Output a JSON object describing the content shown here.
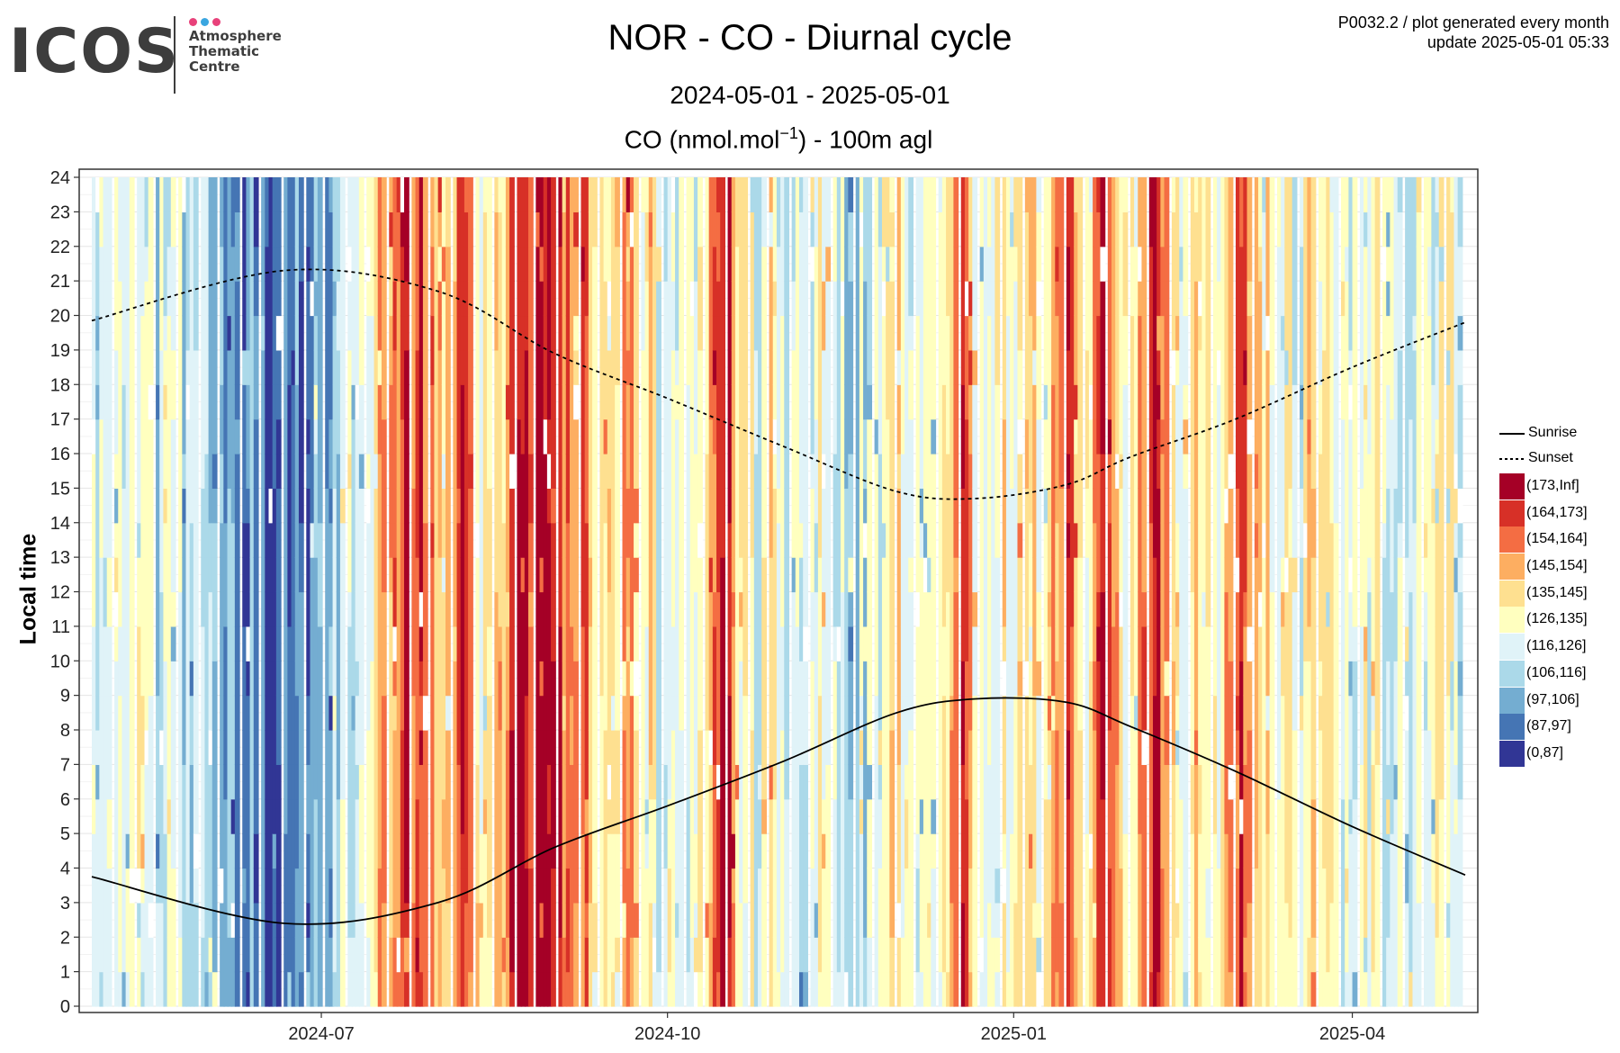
{
  "logo": {
    "word": "ICOS",
    "text": "Atmosphere\nThematic\nCentre",
    "dot_colors": [
      "#e8417a",
      "#3aa6e0",
      "#e8417a"
    ]
  },
  "header": {
    "title": "NOR - CO - Diurnal cycle",
    "subtitle": "2024-05-01 - 2025-05-01",
    "units_prefix": "CO (nmol.mol",
    "units_sup": "−1",
    "units_suffix": ") - 100m agl",
    "meta_line1": "P0032.2 / plot generated every month",
    "meta_line2": "update  2025-05-01 05:33"
  },
  "chart_data": {
    "type": "heatmap",
    "title": "NOR - CO - Diurnal cycle",
    "subtitle": "2024-05-01 - 2025-05-01",
    "value_label": "CO (nmol.mol-1) - 100m agl",
    "xlabel": "",
    "ylabel": "Local time",
    "x_range": [
      "2024-05-01",
      "2025-05-01"
    ],
    "x_ticks": [
      "2024-07",
      "2024-10",
      "2025-01",
      "2025-04"
    ],
    "y_range": [
      0,
      24
    ],
    "y_ticks": [
      0,
      1,
      2,
      3,
      4,
      5,
      6,
      7,
      8,
      9,
      10,
      11,
      12,
      13,
      14,
      15,
      16,
      17,
      18,
      19,
      20,
      21,
      22,
      23,
      24
    ],
    "grid": true,
    "legend_position": "right",
    "bins": [
      {
        "label": "(173,Inf]",
        "color": "#a50026"
      },
      {
        "label": "(164,173]",
        "color": "#d73027"
      },
      {
        "label": "(154,164]",
        "color": "#f46d43"
      },
      {
        "label": "(145,154]",
        "color": "#fdae61"
      },
      {
        "label": "(135,145]",
        "color": "#fee090"
      },
      {
        "label": "(126,135]",
        "color": "#ffffbf"
      },
      {
        "label": "(116,126]",
        "color": "#e0f3f8"
      },
      {
        "label": "(106,116]",
        "color": "#abd9e9"
      },
      {
        "label": "(97,106]",
        "color": "#74add1"
      },
      {
        "label": "(87,97]",
        "color": "#4575b4"
      },
      {
        "label": "(0,87]",
        "color": "#313695"
      }
    ],
    "lines": [
      {
        "name": "Sunrise",
        "style": "solid",
        "points": [
          [
            "2024-05-01",
            3.75
          ],
          [
            "2024-06-21",
            2.4
          ],
          [
            "2024-08-01",
            3.0
          ],
          [
            "2024-09-01",
            4.6
          ],
          [
            "2024-10-01",
            5.8
          ],
          [
            "2024-11-01",
            7.1
          ],
          [
            "2024-12-01",
            8.5
          ],
          [
            "2024-12-22",
            8.9
          ],
          [
            "2025-01-15",
            8.8
          ],
          [
            "2025-02-01",
            8.1
          ],
          [
            "2025-03-01",
            6.8
          ],
          [
            "2025-04-01",
            5.2
          ],
          [
            "2025-05-01",
            3.8
          ]
        ]
      },
      {
        "name": "Sunset",
        "style": "dashed",
        "points": [
          [
            "2024-05-01",
            19.85
          ],
          [
            "2024-06-21",
            21.3
          ],
          [
            "2024-08-01",
            20.7
          ],
          [
            "2024-09-01",
            18.9
          ],
          [
            "2024-10-01",
            17.6
          ],
          [
            "2024-11-01",
            16.2
          ],
          [
            "2024-12-01",
            14.9
          ],
          [
            "2024-12-22",
            14.7
          ],
          [
            "2025-01-15",
            15.1
          ],
          [
            "2025-02-01",
            15.9
          ],
          [
            "2025-03-01",
            17.0
          ],
          [
            "2025-04-01",
            18.5
          ],
          [
            "2025-05-01",
            19.8
          ]
        ]
      }
    ],
    "day_bins": [
      6,
      6,
      5,
      6,
      6,
      6,
      5,
      6,
      6,
      6,
      5,
      5,
      6,
      6,
      7,
      6,
      6,
      6,
      6,
      6,
      7,
      7,
      7,
      7,
      7,
      7,
      7,
      7,
      8,
      8,
      8,
      8,
      9,
      9,
      9,
      8,
      9,
      9,
      10,
      10,
      10,
      10,
      9,
      9,
      8,
      8,
      9,
      9,
      8,
      7,
      7,
      8,
      8,
      7,
      7,
      6,
      6,
      6,
      6,
      6,
      5,
      5,
      4,
      3,
      3,
      3,
      2,
      2,
      2,
      1,
      2,
      1,
      1,
      2,
      2,
      3,
      3,
      4,
      4,
      3,
      2,
      1,
      2,
      3,
      4,
      5,
      5,
      5,
      4,
      3,
      4,
      3,
      1,
      0,
      0,
      0,
      1,
      0,
      0,
      0,
      0,
      1,
      1,
      2,
      2,
      2,
      3,
      2,
      1,
      3,
      4,
      4,
      4,
      4,
      4,
      4,
      3,
      2,
      3,
      4,
      5,
      5,
      4,
      5,
      6,
      6,
      5,
      6,
      6,
      6,
      6,
      6,
      6,
      5,
      4,
      3,
      2,
      1,
      0,
      1,
      2,
      4,
      5,
      5,
      5,
      6,
      6,
      5,
      4,
      5,
      6,
      6,
      6,
      6,
      6,
      7,
      7,
      6,
      6,
      5,
      5,
      5,
      6,
      6,
      6,
      7,
      7,
      7,
      6,
      7,
      6,
      6,
      6,
      5,
      5,
      4,
      4,
      5,
      5,
      6,
      6,
      6,
      6,
      5,
      6,
      6,
      5,
      4,
      3,
      1,
      0,
      1,
      3,
      5,
      6,
      6,
      6,
      5,
      5,
      4,
      5,
      5,
      5,
      4,
      3,
      4,
      4,
      5,
      5,
      4,
      3,
      3,
      2,
      1,
      2,
      3,
      4,
      5,
      4,
      3,
      2,
      1,
      1,
      2,
      3,
      4,
      5,
      5,
      5,
      3,
      2,
      1,
      0,
      1,
      2,
      3,
      4,
      5,
      5,
      5,
      5,
      4,
      4,
      5,
      5,
      5,
      5,
      4,
      3,
      3,
      2,
      1,
      2,
      3,
      4,
      4,
      5,
      4,
      5,
      5,
      5,
      5,
      5,
      6,
      6,
      5,
      4,
      4,
      5,
      5,
      5,
      5,
      5,
      6,
      6,
      6,
      6,
      5,
      5,
      6,
      5,
      5,
      6,
      6,
      6,
      6,
      6,
      6,
      6,
      6,
      6,
      6,
      6,
      6,
      5,
      5,
      5,
      5,
      6,
      6
    ]
  }
}
